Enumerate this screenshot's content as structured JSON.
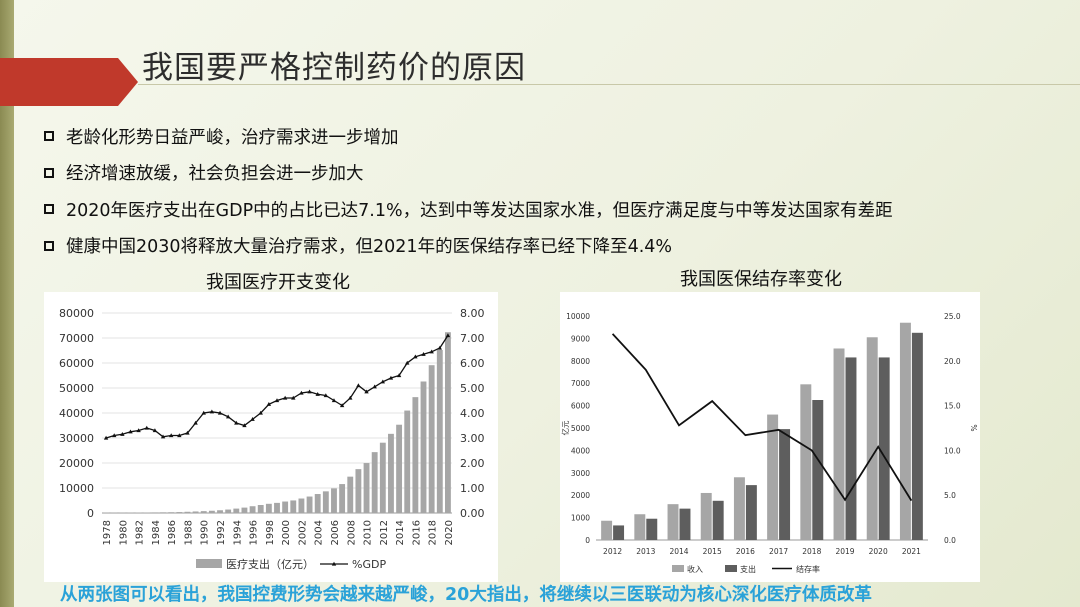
{
  "title": "我国要严格控制药价的原因",
  "bullets": [
    "老龄化形势日益严峻，治疗需求进一步增加",
    "经济增速放缓，社会负担会进一步加大",
    "2020年医疗支出在GDP中的占比已达7.1%，达到中等发达国家水准，但医疗满足度与中等发达国家有差距",
    "健康中国2030将释放大量治疗需求，但2021年的医保结存率已经下降至4.4%"
  ],
  "caption": "从两张图可以看出，我国控费形势会越来越严峻，20大指出，将继续以三医联动为核心深化医疗体质改革",
  "colors": {
    "accent": "#c0392b",
    "bars": "#a6a6a6",
    "bars_dark": "#5e5e5e",
    "line": "#111111",
    "caption": "#2aa2d8"
  },
  "chart_data": [
    {
      "type": "bar",
      "title": "我国医疗开支变化",
      "categories": [
        "1978",
        "1979",
        "1980",
        "1981",
        "1982",
        "1983",
        "1984",
        "1985",
        "1986",
        "1987",
        "1988",
        "1989",
        "1990",
        "1991",
        "1992",
        "1993",
        "1994",
        "1995",
        "1996",
        "1997",
        "1998",
        "1999",
        "2000",
        "2001",
        "2002",
        "2003",
        "2004",
        "2005",
        "2006",
        "2007",
        "2008",
        "2009",
        "2010",
        "2011",
        "2012",
        "2013",
        "2014",
        "2015",
        "2016",
        "2017",
        "2018",
        "2019",
        "2020"
      ],
      "x_tick_labels": [
        "1978",
        "1980",
        "1982",
        "1984",
        "1986",
        "1988",
        "1990",
        "1992",
        "1994",
        "1996",
        "1998",
        "2000",
        "2002",
        "2004",
        "2006",
        "2008",
        "2010",
        "2012",
        "2014",
        "2016",
        "2018",
        "2020"
      ],
      "series": [
        {
          "name": "医疗支出（亿元）",
          "axis": "left",
          "kind": "bar",
          "values": [
            110,
            127,
            143,
            160,
            177,
            207,
            242,
            279,
            316,
            379,
            488,
            615,
            747,
            893,
            1096,
            1378,
            1761,
            2155,
            2709,
            3197,
            3679,
            4048,
            4587,
            5026,
            5790,
            6584,
            7590,
            8660,
            9843,
            11574,
            14535,
            17542,
            19980,
            24346,
            28119,
            31669,
            35312,
            40975,
            46345,
            52598,
            59122,
            65196,
            72306
          ]
        },
        {
          "name": "%GDP",
          "axis": "right",
          "kind": "line",
          "values": [
            3.0,
            3.1,
            3.15,
            3.25,
            3.3,
            3.4,
            3.3,
            3.05,
            3.1,
            3.1,
            3.2,
            3.6,
            4.0,
            4.05,
            4.0,
            3.85,
            3.6,
            3.5,
            3.75,
            4.0,
            4.35,
            4.5,
            4.6,
            4.6,
            4.8,
            4.85,
            4.75,
            4.7,
            4.5,
            4.3,
            4.6,
            5.1,
            4.85,
            5.05,
            5.25,
            5.4,
            5.5,
            6.0,
            6.25,
            6.35,
            6.45,
            6.6,
            7.1
          ]
        }
      ],
      "left_axis": {
        "min": 0,
        "max": 80000,
        "ticks": [
          "0",
          "10000",
          "20000",
          "30000",
          "40000",
          "50000",
          "60000",
          "70000",
          "80000"
        ]
      },
      "right_axis": {
        "min": 0,
        "max": 8,
        "ticks": [
          "0.00",
          "1.00",
          "2.00",
          "3.00",
          "4.00",
          "5.00",
          "6.00",
          "7.00",
          "8.00"
        ]
      },
      "legend": "bottom"
    },
    {
      "type": "bar",
      "title": "我国医保结存率变化",
      "categories": [
        "2012",
        "2013",
        "2014",
        "2015",
        "2016",
        "2017",
        "2018",
        "2019",
        "2020",
        "2021"
      ],
      "series": [
        {
          "name": "收入",
          "axis": "left",
          "kind": "bar",
          "values": [
            860,
            1150,
            1600,
            2100,
            2800,
            5600,
            6950,
            8550,
            9050,
            9700
          ]
        },
        {
          "name": "支出",
          "axis": "left",
          "kind": "bar",
          "values": [
            650,
            950,
            1400,
            1750,
            2450,
            4950,
            6250,
            8150,
            8150,
            9250
          ]
        },
        {
          "name": "结存率",
          "axis": "right",
          "kind": "line",
          "values": [
            23.0,
            19.0,
            12.8,
            15.5,
            11.7,
            12.3,
            10.0,
            4.5,
            10.4,
            4.4
          ]
        }
      ],
      "left_axis": {
        "label": "亿元",
        "min": 0,
        "max": 10000,
        "ticks": [
          "0",
          "1000",
          "2000",
          "3000",
          "4000",
          "5000",
          "6000",
          "7000",
          "8000",
          "9000",
          "10000"
        ]
      },
      "right_axis": {
        "label": "%",
        "min": 0,
        "max": 25,
        "ticks": [
          "0.0",
          "5.0",
          "10.0",
          "15.0",
          "20.0",
          "25.0"
        ]
      },
      "legend": "bottom"
    }
  ]
}
